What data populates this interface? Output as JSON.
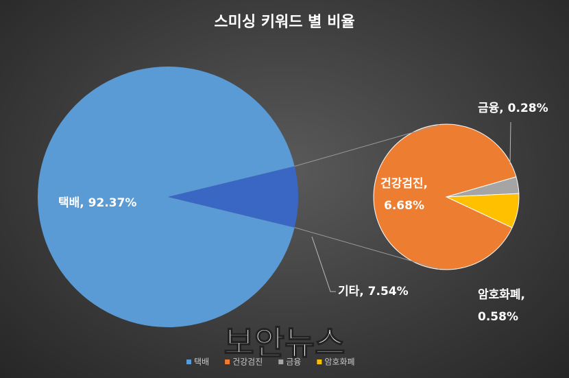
{
  "chart_data": {
    "type": "pie",
    "title": "스미싱 키워드 별 비율",
    "categories": [
      "택배",
      "기타"
    ],
    "values": [
      92.37,
      7.54
    ],
    "value_labels": [
      "택배, 92.37%",
      "기타, 7.54%"
    ],
    "colors": [
      "#5b9bd5",
      "#3b67c4"
    ],
    "secondary": {
      "categories": [
        "건강검진",
        "금융",
        "암호화폐"
      ],
      "values": [
        6.68,
        0.28,
        0.58
      ],
      "value_labels": [
        "건강검진,\n6.68%",
        "금융, 0.28%",
        "암호화폐,\n0.58%"
      ],
      "colors": [
        "#ed7d31",
        "#a5a5a5",
        "#ffc000"
      ]
    },
    "legend": "bottom",
    "watermark": "보안뉴스"
  }
}
